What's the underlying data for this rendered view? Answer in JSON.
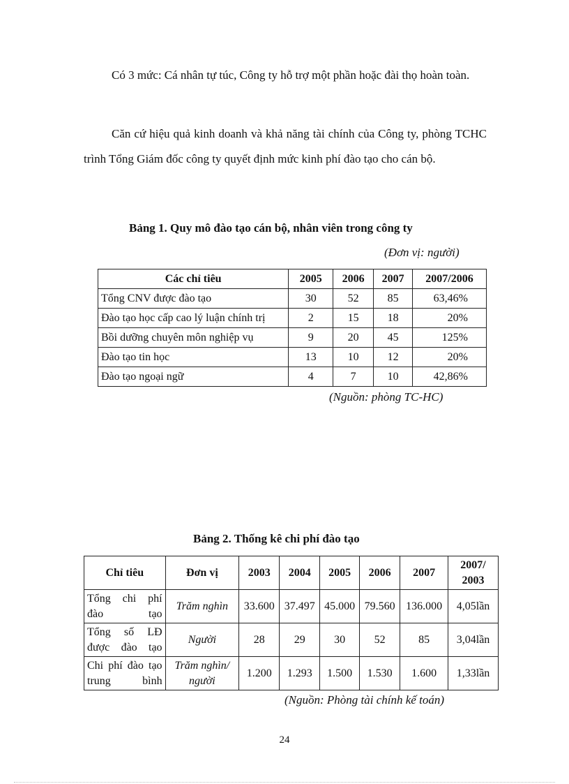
{
  "paragraphs": [
    "Có 3 mức: Cá nhân tự túc, Công ty hỗ trợ một phần hoặc đài thọ hoàn toàn.",
    "Căn cứ hiệu quả kinh doanh và khả năng tài chính của Công ty, phòng TCHC trình Tổng Giám đốc công ty quyết định mức kinh phí đào tạo cho cán bộ."
  ],
  "table1": {
    "title": "Bảng 1. Quy mô đào tạo cán bộ, nhân viên trong công ty",
    "unit": "(Đơn vị: người)",
    "headers": [
      "Các chỉ tiêu",
      "2005",
      "2006",
      "2007",
      "2007/2006"
    ],
    "rows": [
      [
        "Tổng CNV được đào tạo",
        "30",
        "52",
        "85",
        "63,46%"
      ],
      [
        "Đào tạo học cấp cao lý luận chính trị",
        "2",
        "15",
        "18",
        "20%"
      ],
      [
        "Bồi dưỡng chuyên môn nghiệp vụ",
        "9",
        "20",
        "45",
        "125%"
      ],
      [
        "Đào tạo tin học",
        "13",
        "10",
        "12",
        "20%"
      ],
      [
        "Đào tạo ngoại ngữ",
        "4",
        "7",
        "10",
        "42,86%"
      ]
    ],
    "source": "(Nguồn: phòng TC-HC)"
  },
  "table2": {
    "title": "Bảng 2. Thống kê chi phí đào tạo",
    "headers": [
      "Chỉ tiêu",
      "Đơn vị",
      "2003",
      "2004",
      "2005",
      "2006",
      "2007",
      "2007/ 2003"
    ],
    "rows": [
      [
        "Tổng chi phí đào tạo",
        "Trăm nghìn",
        "33.600",
        "37.497",
        "45.000",
        "79.560",
        "136.000",
        "4,05lần"
      ],
      [
        "Tổng số LĐ được đào tạo",
        "Người",
        "28",
        "29",
        "30",
        "52",
        "85",
        "3,04lần"
      ],
      [
        "Chi phí đào tạo trung bình",
        "Trăm nghìn/ người",
        "1.200",
        "1.293",
        "1.500",
        "1.530",
        "1.600",
        "1,33lần"
      ]
    ],
    "source": "(Nguồn: Phòng tài chính kế toán)"
  },
  "page_number": "24"
}
